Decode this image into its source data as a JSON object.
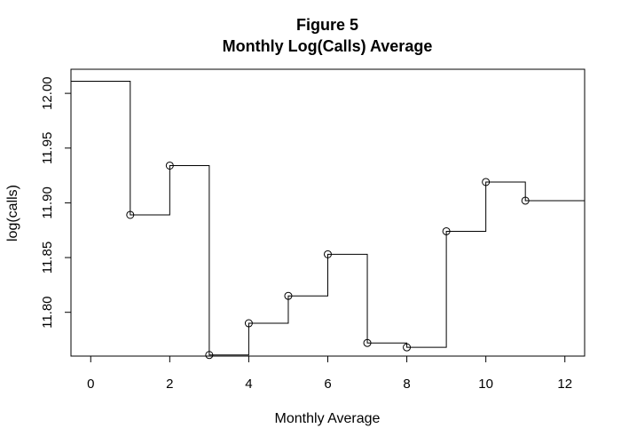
{
  "chart_data": {
    "type": "line",
    "title": "Figure 5",
    "subtitle": "Monthly Log(Calls) Average",
    "xlabel": "Monthly Average",
    "ylabel": "log(calls)",
    "step": true,
    "x_range": [
      -0.5,
      12.5
    ],
    "y_range": [
      11.76,
      12.022
    ],
    "x_ticks": [
      0,
      2,
      4,
      6,
      8,
      10,
      12
    ],
    "x_tick_labels": [
      "0",
      "2",
      "4",
      "6",
      "8",
      "10",
      "12"
    ],
    "y_ticks": [
      11.8,
      11.85,
      11.9,
      11.95,
      12.0
    ],
    "y_tick_labels": [
      "11.80",
      "11.85",
      "11.90",
      "11.95",
      "12.00"
    ],
    "x_axis_extent": [
      0,
      12
    ],
    "step_start": {
      "x": -0.5,
      "y": 12.011
    },
    "step_end_x": 12.5,
    "points": [
      {
        "x": 1,
        "y": 11.889
      },
      {
        "x": 2,
        "y": 11.934
      },
      {
        "x": 3,
        "y": 11.761
      },
      {
        "x": 4,
        "y": 11.79
      },
      {
        "x": 5,
        "y": 11.815
      },
      {
        "x": 6,
        "y": 11.853
      },
      {
        "x": 7,
        "y": 11.772
      },
      {
        "x": 8,
        "y": 11.768
      },
      {
        "x": 9,
        "y": 11.874
      },
      {
        "x": 10,
        "y": 11.919
      },
      {
        "x": 11,
        "y": 11.902
      }
    ],
    "grid": false,
    "legend": "none"
  }
}
